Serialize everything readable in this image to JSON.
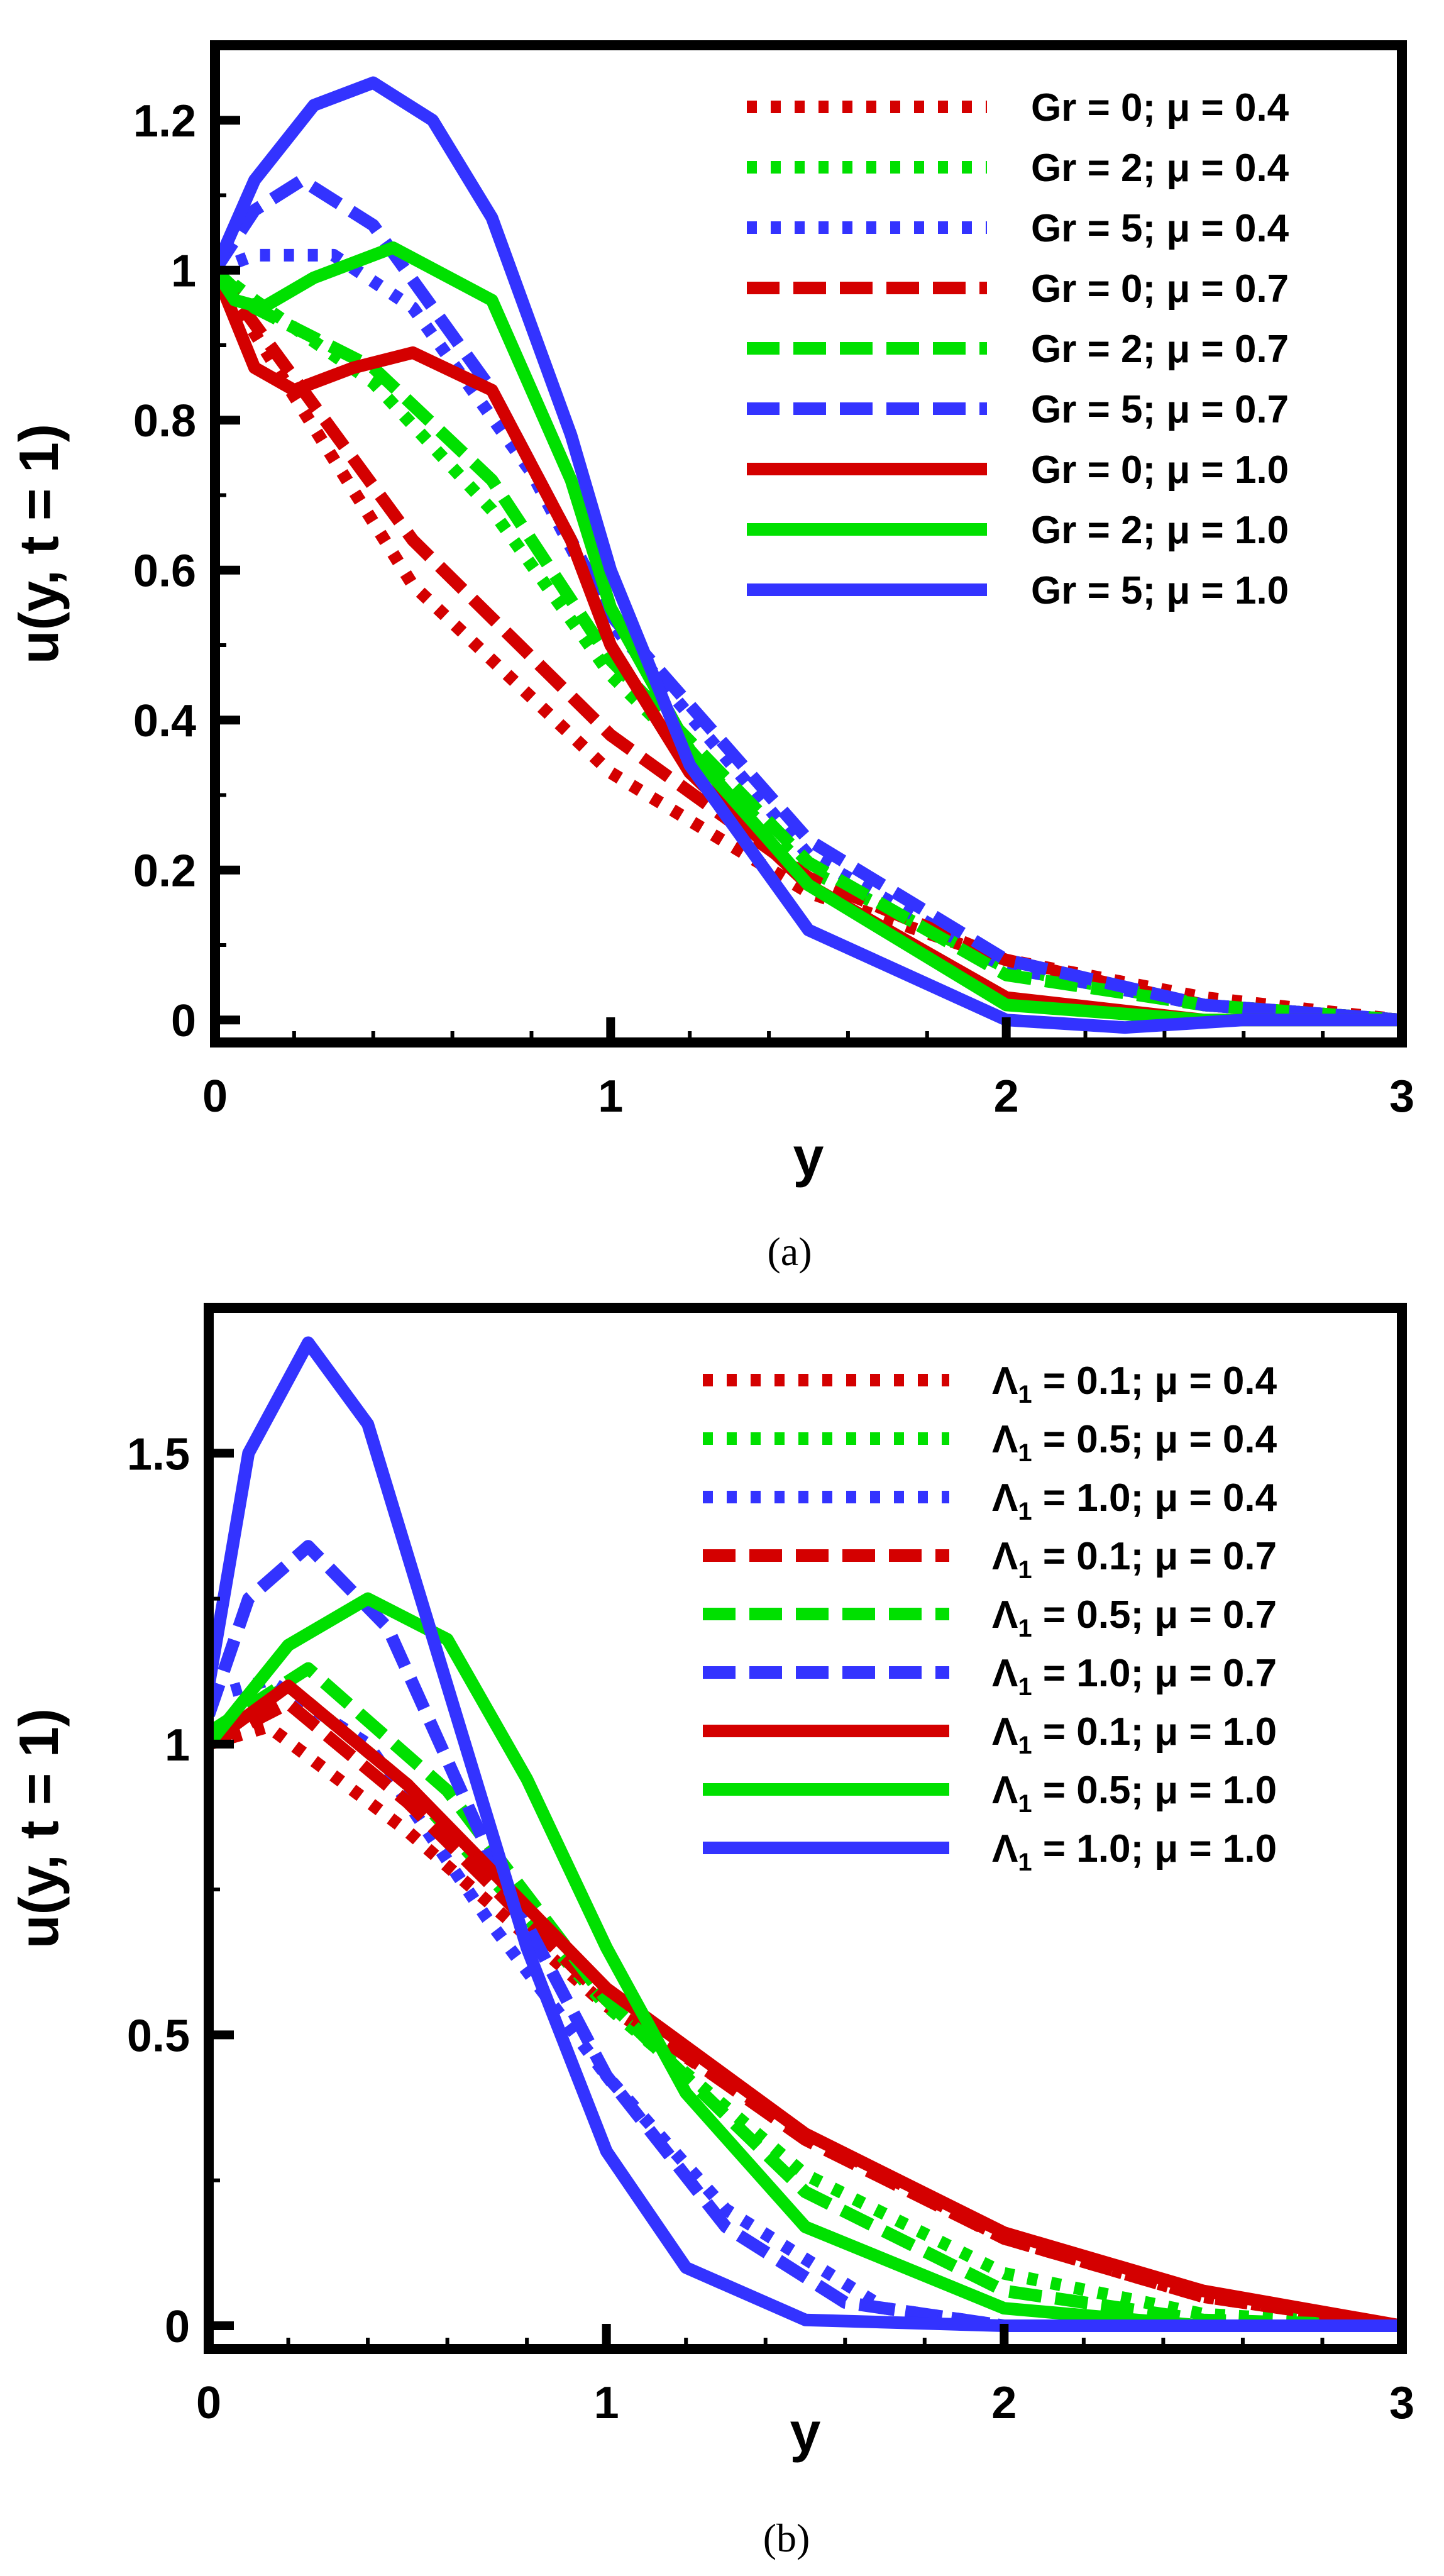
{
  "chart_data": [
    {
      "type": "line",
      "caption": "(a)",
      "xlabel": "y",
      "ylabel": "u(y, t = 1)",
      "xlim": [
        0,
        3
      ],
      "ylim": [
        -0.03,
        1.3
      ],
      "xticks": [
        0,
        1,
        2,
        3
      ],
      "xtick_labels": [
        "0",
        "1",
        "2",
        "3"
      ],
      "yticks": [
        0,
        0.2,
        0.4,
        0.6,
        0.8,
        1,
        1.2
      ],
      "ytick_labels": [
        "0",
        "0.2",
        "0.4",
        "0.6",
        "0.8",
        "1",
        "1.2"
      ],
      "legend_position": "top-right",
      "series": [
        {
          "name": "Gr = 0; μ = 0.4",
          "color": "#d40000",
          "style": "dotted",
          "x": [
            0,
            0.5,
            1,
            1.5,
            2,
            2.5,
            3
          ],
          "y": [
            1.0,
            0.58,
            0.33,
            0.17,
            0.08,
            0.03,
            0.0
          ]
        },
        {
          "name": "Gr = 2; μ = 0.4",
          "color": "#00e000",
          "style": "dotted",
          "x": [
            0,
            0.1,
            0.4,
            0.7,
            1,
            1.5,
            2,
            2.5,
            3
          ],
          "y": [
            1.0,
            0.96,
            0.85,
            0.68,
            0.46,
            0.2,
            0.07,
            0.02,
            0.0
          ]
        },
        {
          "name": "Gr = 5; μ = 0.4",
          "color": "#3333ff",
          "style": "dotted",
          "x": [
            0,
            0.1,
            0.3,
            0.5,
            0.8,
            1,
            1.5,
            2,
            2.5,
            3
          ],
          "y": [
            1.0,
            1.02,
            1.02,
            0.95,
            0.73,
            0.53,
            0.22,
            0.07,
            0.02,
            0.0
          ]
        },
        {
          "name": "Gr = 0; μ = 0.7",
          "color": "#d40000",
          "style": "dashed",
          "x": [
            0,
            0.5,
            1,
            1.5,
            2,
            2.5,
            3
          ],
          "y": [
            1.0,
            0.64,
            0.38,
            0.19,
            0.08,
            0.02,
            0.0
          ]
        },
        {
          "name": "Gr = 2; μ = 0.7",
          "color": "#00e000",
          "style": "dashed",
          "x": [
            0,
            0.1,
            0.4,
            0.7,
            1,
            1.5,
            2,
            2.5,
            3
          ],
          "y": [
            1.0,
            0.95,
            0.87,
            0.72,
            0.48,
            0.21,
            0.06,
            0.02,
            0.0
          ]
        },
        {
          "name": "Gr = 5; μ = 0.7",
          "color": "#3333ff",
          "style": "dashed",
          "x": [
            0,
            0.1,
            0.22,
            0.4,
            0.7,
            1,
            1.5,
            2,
            2.5,
            3
          ],
          "y": [
            1.0,
            1.08,
            1.12,
            1.06,
            0.84,
            0.54,
            0.24,
            0.08,
            0.02,
            0.0
          ]
        },
        {
          "name": "Gr = 0; μ = 1.0",
          "color": "#d40000",
          "style": "solid",
          "x": [
            0,
            0.1,
            0.2,
            0.35,
            0.5,
            0.7,
            0.9,
            1,
            1.2,
            1.5,
            2,
            2.5,
            3
          ],
          "y": [
            1.0,
            0.87,
            0.84,
            0.87,
            0.89,
            0.84,
            0.64,
            0.5,
            0.33,
            0.18,
            0.03,
            0.0,
            0.0
          ]
        },
        {
          "name": "Gr = 2; μ = 1.0",
          "color": "#00e000",
          "style": "solid",
          "x": [
            0,
            0.05,
            0.12,
            0.25,
            0.45,
            0.7,
            0.9,
            1,
            1.2,
            1.5,
            2,
            2.5,
            3
          ],
          "y": [
            1.0,
            0.96,
            0.95,
            0.99,
            1.03,
            0.96,
            0.72,
            0.55,
            0.36,
            0.18,
            0.02,
            0.0,
            0.0
          ]
        },
        {
          "name": "Gr = 5; μ = 1.0",
          "color": "#3333ff",
          "style": "solid",
          "x": [
            0,
            0.1,
            0.25,
            0.4,
            0.55,
            0.7,
            0.9,
            1,
            1.2,
            1.5,
            2,
            2.3,
            2.6,
            3
          ],
          "y": [
            1.0,
            1.12,
            1.22,
            1.25,
            1.2,
            1.07,
            0.78,
            0.6,
            0.34,
            0.12,
            0.0,
            -0.01,
            0.0,
            0.0
          ]
        }
      ]
    },
    {
      "type": "line",
      "caption": "(b)",
      "xlabel": "y",
      "ylabel": "u(y, t = 1)",
      "xlim": [
        0,
        3
      ],
      "ylim": [
        -0.04,
        1.75
      ],
      "xticks": [
        0,
        1,
        2,
        3
      ],
      "xtick_labels": [
        "0",
        "1",
        "2",
        "3"
      ],
      "yticks": [
        0,
        0.5,
        1,
        1.5
      ],
      "ytick_labels": [
        "0",
        "0.5",
        "1",
        "1.5"
      ],
      "legend_position": "top-right",
      "series": [
        {
          "name": "Λ1 = 0.1; μ = 0.4",
          "label_parts": [
            "Λ",
            "1",
            " = 0.1; μ = 0.4"
          ],
          "color": "#d40000",
          "style": "dotted",
          "x": [
            0,
            0.15,
            0.5,
            1,
            1.5,
            2,
            2.5,
            3
          ],
          "y": [
            1.0,
            1.03,
            0.85,
            0.55,
            0.33,
            0.15,
            0.05,
            0.0
          ]
        },
        {
          "name": "Λ1 = 0.5; μ = 0.4",
          "label_parts": [
            "Λ",
            "1",
            " = 0.5; μ = 0.4"
          ],
          "color": "#00e000",
          "style": "dotted",
          "x": [
            0,
            0.2,
            0.5,
            1,
            1.5,
            2,
            2.5,
            3
          ],
          "y": [
            1.02,
            1.1,
            0.93,
            0.55,
            0.26,
            0.09,
            0.02,
            0.0
          ]
        },
        {
          "name": "Λ1 = 1.0; μ = 0.4",
          "label_parts": [
            "Λ",
            "1",
            " = 1.0; μ = 0.4"
          ],
          "color": "#3333ff",
          "style": "dotted",
          "x": [
            0,
            0.15,
            0.4,
            0.7,
            1,
            1.3,
            1.7,
            2,
            3
          ],
          "y": [
            1.08,
            1.11,
            1.0,
            0.7,
            0.43,
            0.2,
            0.03,
            0.0,
            0.0
          ]
        },
        {
          "name": "Λ1 = 0.1; μ = 0.7",
          "label_parts": [
            "Λ",
            "1",
            " = 0.1; μ = 0.7"
          ],
          "color": "#d40000",
          "style": "dashed",
          "x": [
            0,
            0.2,
            0.5,
            1,
            1.5,
            2,
            2.5,
            3
          ],
          "y": [
            1.0,
            1.07,
            0.9,
            0.56,
            0.32,
            0.15,
            0.05,
            0.0
          ]
        },
        {
          "name": "Λ1 = 0.5; μ = 0.7",
          "label_parts": [
            "Λ",
            "1",
            " = 0.5; μ = 0.7"
          ],
          "color": "#00e000",
          "style": "dashed",
          "x": [
            0,
            0.25,
            0.6,
            1,
            1.5,
            2,
            2.5,
            3
          ],
          "y": [
            1.02,
            1.13,
            0.92,
            0.56,
            0.23,
            0.06,
            0.01,
            0.0
          ]
        },
        {
          "name": "Λ1 = 1.0; μ = 0.7",
          "label_parts": [
            "Λ",
            "1",
            " = 1.0; μ = 0.7"
          ],
          "color": "#3333ff",
          "style": "dashed",
          "x": [
            0,
            0.1,
            0.25,
            0.45,
            0.7,
            1,
            1.3,
            1.6,
            2,
            3
          ],
          "y": [
            1.05,
            1.25,
            1.34,
            1.2,
            0.82,
            0.43,
            0.17,
            0.04,
            0.0,
            0.0
          ]
        },
        {
          "name": "Λ1 = 0.1; μ = 1.0",
          "label_parts": [
            "Λ",
            "1",
            " = 0.1; μ = 1.0"
          ],
          "color": "#d40000",
          "style": "solid",
          "x": [
            0,
            0.2,
            0.5,
            1,
            1.5,
            2,
            2.5,
            3
          ],
          "y": [
            1.0,
            1.1,
            0.93,
            0.58,
            0.33,
            0.16,
            0.06,
            0.0
          ]
        },
        {
          "name": "Λ1 = 0.5; μ = 1.0",
          "label_parts": [
            "Λ",
            "1",
            " = 0.5; μ = 1.0"
          ],
          "color": "#00e000",
          "style": "solid",
          "x": [
            0,
            0.2,
            0.4,
            0.6,
            0.8,
            1,
            1.2,
            1.5,
            2,
            2.5,
            3
          ],
          "y": [
            1.0,
            1.17,
            1.25,
            1.18,
            0.94,
            0.65,
            0.4,
            0.17,
            0.03,
            0.0,
            0.0
          ]
        },
        {
          "name": "Λ1 = 1.0; μ = 1.0",
          "label_parts": [
            "Λ",
            "1",
            " = 1.0; μ = 1.0"
          ],
          "color": "#3333ff",
          "style": "solid",
          "x": [
            0,
            0.1,
            0.25,
            0.4,
            0.6,
            0.8,
            1,
            1.2,
            1.5,
            2,
            3
          ],
          "y": [
            1.1,
            1.5,
            1.69,
            1.55,
            1.1,
            0.65,
            0.3,
            0.1,
            0.01,
            0.0,
            0.0
          ]
        }
      ]
    }
  ]
}
